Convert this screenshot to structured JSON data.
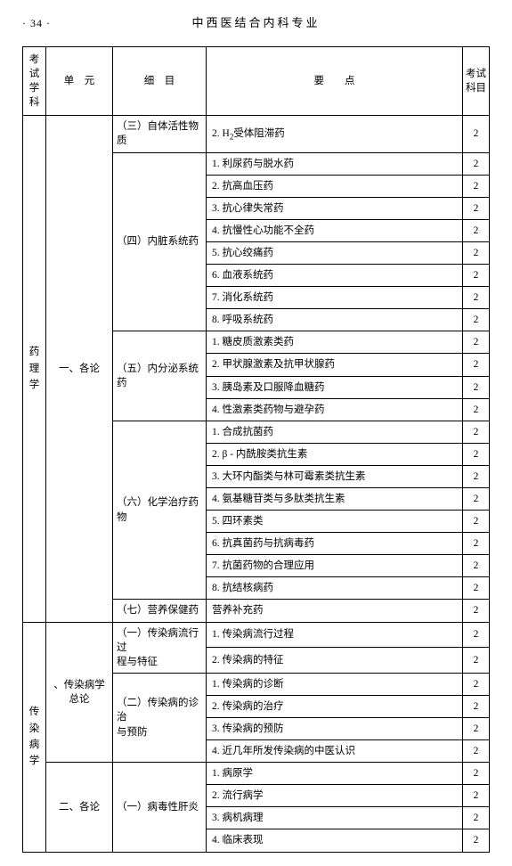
{
  "page_number": "· 34 ·",
  "doc_title": "中西医结合内科专业",
  "columns": {
    "c1": "考试\n学科",
    "c2": "单　元",
    "c3": "细　目",
    "c4": "要　　点",
    "c5": "考试\n科目"
  },
  "subjects": {
    "s1": "药\n理\n学",
    "s2": "传\n染\n病\n学"
  },
  "units": {
    "u1": "一、各论",
    "u2": "、传染病学\n总论",
    "u3": "二、各论"
  },
  "details": {
    "d3": "（三）自体活性物质",
    "d4": "（四）内脏系统药",
    "d5": "（五）内分泌系统药",
    "d6": "（六）化学治疗药物",
    "d7": "（七）营养保健药",
    "d8": "（一）传染病流行过\n程与特征",
    "d9": "（二）传染病的诊治\n与预防",
    "d10": "（一）病毒性肝炎"
  },
  "rows": [
    {
      "pt": "2. H₂受体阻滞药",
      "c": "2"
    },
    {
      "pt": "1. 利尿药与脱水药",
      "c": "2"
    },
    {
      "pt": "2. 抗高血压药",
      "c": "2"
    },
    {
      "pt": "3. 抗心律失常药",
      "c": "2"
    },
    {
      "pt": "4. 抗慢性心功能不全药",
      "c": "2"
    },
    {
      "pt": "5. 抗心绞痛药",
      "c": "2"
    },
    {
      "pt": "6. 血液系统药",
      "c": "2"
    },
    {
      "pt": "7. 消化系统药",
      "c": "2"
    },
    {
      "pt": "8. 呼吸系统药",
      "c": "2"
    },
    {
      "pt": "1. 糖皮质激素类药",
      "c": "2"
    },
    {
      "pt": "2. 甲状腺激素及抗甲状腺药",
      "c": "2"
    },
    {
      "pt": "3. 胰岛素及口服降血糖药",
      "c": "2"
    },
    {
      "pt": "4. 性激素类药物与避孕药",
      "c": "2"
    },
    {
      "pt": "1. 合成抗菌药",
      "c": "2"
    },
    {
      "pt": "2. β - 内酰胺类抗生素",
      "c": "2"
    },
    {
      "pt": "3. 大环内酯类与林可霉素类抗生素",
      "c": "2"
    },
    {
      "pt": "4. 氨基糖苷类与多肽类抗生素",
      "c": "2"
    },
    {
      "pt": "5. 四环素类",
      "c": "2"
    },
    {
      "pt": "6. 抗真菌药与抗病毒药",
      "c": "2"
    },
    {
      "pt": "7. 抗菌药物的合理应用",
      "c": "2"
    },
    {
      "pt": "8. 抗结核病药",
      "c": "2"
    },
    {
      "pt": "营养补充药",
      "c": "2"
    },
    {
      "pt": "1. 传染病流行过程",
      "c": "2"
    },
    {
      "pt": "2. 传染病的特征",
      "c": "2"
    },
    {
      "pt": "1. 传染病的诊断",
      "c": "2"
    },
    {
      "pt": "2. 传染病的治疗",
      "c": "2"
    },
    {
      "pt": "3. 传染病的预防",
      "c": "2"
    },
    {
      "pt": "4. 近几年所发传染病的中医认识",
      "c": "2"
    },
    {
      "pt": "1. 病原学",
      "c": "2"
    },
    {
      "pt": "2. 流行病学",
      "c": "2"
    },
    {
      "pt": "3. 病机病理",
      "c": "2"
    },
    {
      "pt": "4. 临床表现",
      "c": "2"
    }
  ]
}
